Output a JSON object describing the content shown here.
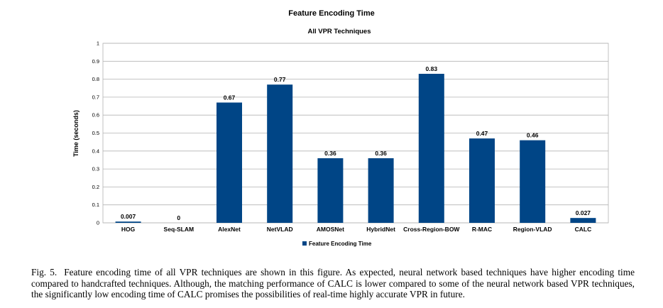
{
  "chart_data": {
    "type": "bar",
    "title": "Feature Encoding Time",
    "subtitle": "All VPR Techniques",
    "ylabel": "Time (seconds)",
    "xlabel": "",
    "ylim": [
      0,
      1
    ],
    "yticks": [
      "0",
      "0.1",
      "0.2",
      "0.3",
      "0.4",
      "0.5",
      "0.6",
      "0.7",
      "0.8",
      "0.9",
      "1"
    ],
    "ytick_values": [
      0,
      0.1,
      0.2,
      0.3,
      0.4,
      0.5,
      0.6,
      0.7,
      0.8,
      0.9,
      1
    ],
    "grid": true,
    "legend_position": "bottom",
    "categories": [
      "HOG",
      "Seq-SLAM",
      "AlexNet",
      "NetVLAD",
      "AMOSNet",
      "HybridNet",
      "Cross-Region-BOW",
      "R-MAC",
      "Region-VLAD",
      "CALC"
    ],
    "series": [
      {
        "name": "Feature Encoding Time",
        "color": "#004586",
        "values": [
          0.007,
          0,
          0.67,
          0.77,
          0.36,
          0.36,
          0.83,
          0.47,
          0.46,
          0.027
        ],
        "labels": [
          "0.007",
          "0",
          "0.67",
          "0.77",
          "0.36",
          "0.36",
          "0.83",
          "0.47",
          "0.46",
          "0.027"
        ]
      }
    ]
  },
  "caption": {
    "label": "Fig. 5.",
    "text": "Feature encoding time of all VPR techniques are shown in this figure. As expected, neural network based techniques have higher encoding time compared to handcrafted techniques. Although, the matching performance of CALC is lower compared to some of the neural network based VPR techniques, the significantly low encoding time of CALC promises the possibilities of real-time highly accurate VPR in future."
  }
}
